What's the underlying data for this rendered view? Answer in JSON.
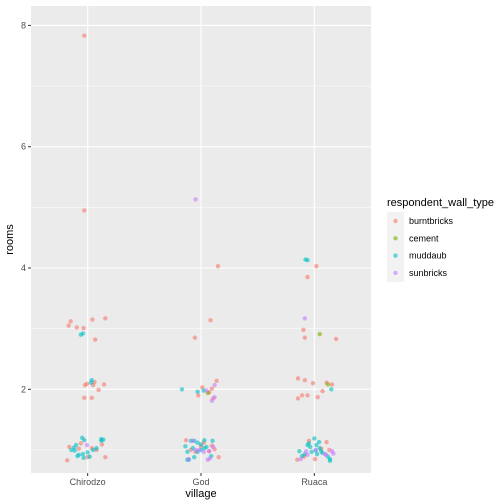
{
  "chart_data": {
    "type": "scatter",
    "xlabel": "village",
    "ylabel": "rooms",
    "categories": [
      "Chirodzo",
      "God",
      "Ruaca"
    ],
    "ylim": [
      0.62,
      8.32
    ],
    "yticks": [
      2,
      4,
      6,
      8
    ],
    "grid": true,
    "legend": {
      "title": "respondent_wall_type",
      "placement": "right",
      "entries": [
        {
          "name": "burntbricks",
          "color": "#F8766D"
        },
        {
          "name": "cement",
          "color": "#7CAE00"
        },
        {
          "name": "muddaub",
          "color": "#00BFC4"
        },
        {
          "name": "sunbricks",
          "color": "#C77CFF"
        }
      ]
    },
    "series": [
      {
        "name": "burntbricks",
        "color": "#F8766D",
        "points": [
          [
            -0.05,
            7.83
          ],
          [
            -0.05,
            4.95
          ],
          [
            -0.28,
            3.05
          ],
          [
            -0.25,
            3.12
          ],
          [
            -0.16,
            3.02
          ],
          [
            -0.06,
            3.01
          ],
          [
            0.07,
            3.15
          ],
          [
            0.26,
            3.17
          ],
          [
            0.11,
            2.82
          ],
          [
            -0.04,
            2.07
          ],
          [
            -0.01,
            2.09
          ],
          [
            0.08,
            2.07
          ],
          [
            0.24,
            2.08
          ],
          [
            0.16,
            1.99
          ],
          [
            -0.05,
            1.86
          ],
          [
            0.06,
            1.86
          ],
          [
            0.1,
            2.12
          ],
          [
            -0.3,
            0.83
          ],
          [
            -0.27,
            1.05
          ],
          [
            -0.13,
            1.02
          ],
          [
            0.06,
            1.03
          ],
          [
            0.13,
            1.0
          ],
          [
            0.21,
            1.09
          ],
          [
            -0.1,
            1.11
          ],
          [
            0.26,
            0.88
          ],
          [
            0.0,
            0.88
          ],
          [
            0.25,
            4.03
          ],
          [
            0.14,
            3.14
          ],
          [
            -0.09,
            2.85
          ],
          [
            0.02,
            2.03
          ],
          [
            0.16,
            2.01
          ],
          [
            0.12,
            1.95
          ],
          [
            0.18,
            1.85
          ],
          [
            -0.04,
            1.9
          ],
          [
            0.23,
            2.14
          ],
          [
            -0.15,
            1.0
          ],
          [
            -0.08,
            0.97
          ],
          [
            0.0,
            1.06
          ],
          [
            0.12,
            0.98
          ],
          [
            0.2,
            1.01
          ],
          [
            -0.22,
            1.16
          ],
          [
            0.26,
            0.88
          ],
          [
            0.04,
            1.12
          ],
          [
            0.16,
            1.07
          ],
          [
            0.03,
            4.03
          ],
          [
            -0.1,
            3.85
          ],
          [
            -0.16,
            2.98
          ],
          [
            -0.14,
            2.85
          ],
          [
            -0.24,
            2.18
          ],
          [
            -0.14,
            2.15
          ],
          [
            -0.02,
            2.1
          ],
          [
            0.18,
            2.11
          ],
          [
            0.26,
            2.08
          ],
          [
            -0.24,
            1.85
          ],
          [
            -0.18,
            1.9
          ],
          [
            -0.1,
            1.9
          ],
          [
            0.05,
            1.87
          ],
          [
            0.12,
            1.97
          ],
          [
            0.32,
            2.83
          ],
          [
            -0.25,
            0.84
          ],
          [
            -0.15,
            0.89
          ],
          [
            0.01,
            0.85
          ],
          [
            0.18,
            1.13
          ],
          [
            -0.08,
            1.15
          ],
          [
            0.1,
            1.02
          ],
          [
            0.22,
            1.0
          ]
        ]
      },
      {
        "name": "cement",
        "color": "#7CAE00",
        "points": [
          [
            0.1,
            1.94
          ],
          [
            0.08,
            2.91
          ],
          [
            0.2,
            2.08
          ]
        ]
      },
      {
        "name": "muddaub",
        "color": "#00BFC4",
        "points": [
          [
            -0.1,
            2.9
          ],
          [
            0.06,
            2.15
          ],
          [
            0.05,
            2.11
          ],
          [
            -0.24,
            1.0
          ],
          [
            -0.19,
            0.99
          ],
          [
            -0.17,
            1.08
          ],
          [
            -0.13,
            0.92
          ],
          [
            -0.07,
            0.93
          ],
          [
            -0.06,
            0.87
          ],
          [
            0.0,
            0.96
          ],
          [
            0.03,
            0.89
          ],
          [
            0.08,
            1.0
          ],
          [
            0.13,
            1.03
          ],
          [
            0.2,
            1.18
          ],
          [
            0.23,
            1.17
          ],
          [
            -0.08,
            1.2
          ],
          [
            -0.05,
            1.16
          ],
          [
            0.2,
            1.15
          ],
          [
            -0.2,
            1.04
          ],
          [
            -0.15,
            0.9
          ],
          [
            -0.07,
            2.92
          ],
          [
            -0.28,
            2.0
          ],
          [
            -0.05,
            1.96
          ],
          [
            0.04,
            1.98
          ],
          [
            -0.23,
            1.06
          ],
          [
            -0.2,
            0.97
          ],
          [
            -0.15,
            1.15
          ],
          [
            -0.1,
            1.15
          ],
          [
            -0.05,
            1.12
          ],
          [
            0.05,
            1.16
          ],
          [
            0.17,
            1.15
          ],
          [
            -0.18,
            0.84
          ],
          [
            -0.1,
            0.88
          ],
          [
            -0.05,
            0.97
          ],
          [
            0.0,
            1.0
          ],
          [
            0.08,
            1.05
          ],
          [
            -0.12,
            1.03
          ],
          [
            0.0,
            1.09
          ],
          [
            0.05,
            1.03
          ],
          [
            -0.2,
            0.84
          ],
          [
            0.15,
            0.9
          ],
          [
            -0.13,
            4.14
          ],
          [
            -0.1,
            4.13
          ],
          [
            0.25,
            2.0
          ],
          [
            -0.22,
            0.98
          ],
          [
            -0.18,
            0.9
          ],
          [
            -0.1,
            1.08
          ],
          [
            -0.06,
            1.05
          ],
          [
            -0.04,
            0.97
          ],
          [
            0.02,
            0.99
          ],
          [
            0.08,
            1.03
          ],
          [
            0.12,
            0.95
          ],
          [
            0.23,
            0.85
          ],
          [
            0.0,
            1.19
          ],
          [
            0.07,
            1.13
          ],
          [
            0.2,
            0.89
          ],
          [
            0.23,
            0.82
          ],
          [
            -0.14,
            0.93
          ],
          [
            0.04,
            0.93
          ],
          [
            0.1,
            0.98
          ],
          [
            -0.08,
            1.11
          ],
          [
            0.03,
            1.08
          ]
        ]
      },
      {
        "name": "sunbricks",
        "color": "#C77CFF",
        "points": [
          [
            -0.01,
            1.08
          ],
          [
            0.16,
            1.81
          ],
          [
            -0.08,
            5.13
          ],
          [
            0.2,
            1.87
          ],
          [
            0.2,
            2.07
          ],
          [
            0.08,
            1.98
          ],
          [
            0.18,
            1.05
          ],
          [
            0.1,
            0.84
          ],
          [
            0.13,
            0.86
          ],
          [
            -0.08,
            1.0
          ],
          [
            0.04,
            0.97
          ],
          [
            0.12,
            0.98
          ],
          [
            -0.18,
            0.85
          ],
          [
            -0.03,
            1.0
          ],
          [
            -0.12,
            1.15
          ],
          [
            -0.14,
            3.17
          ],
          [
            -0.1,
            0.92
          ],
          [
            0.28,
            0.94
          ],
          [
            0.26,
            0.98
          ],
          [
            0.17,
            0.92
          ],
          [
            -0.2,
            0.85
          ],
          [
            -0.12,
            0.98
          ],
          [
            0.02,
            1.0
          ],
          [
            0.16,
            0.93
          ]
        ]
      }
    ]
  }
}
